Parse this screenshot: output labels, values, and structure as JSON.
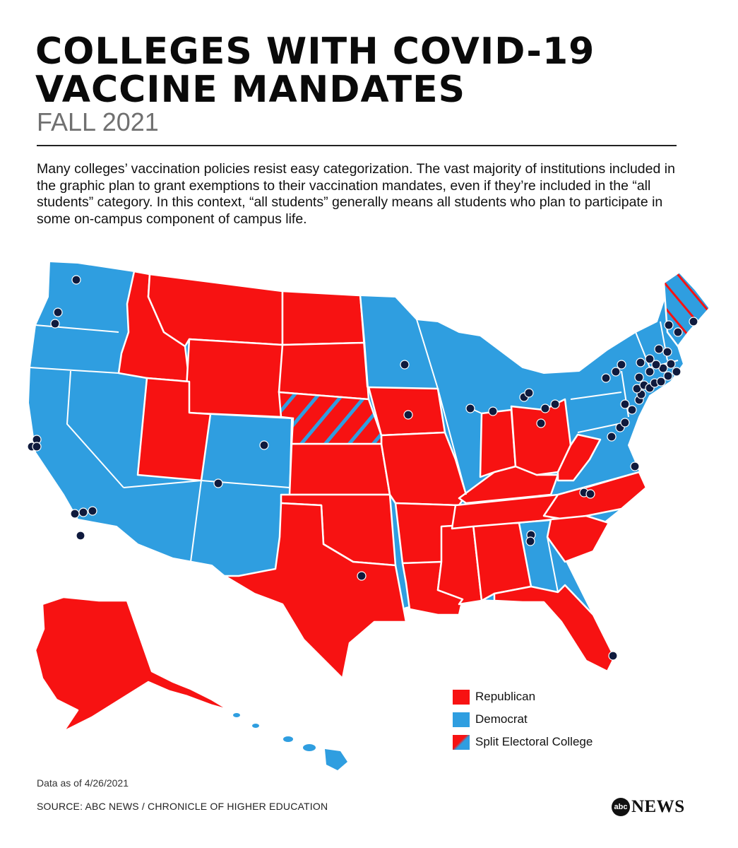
{
  "header": {
    "title_line1": "COLLEGES WITH COVID-19",
    "title_line2": "VACCINE MANDATES",
    "subtitle": "FALL 2021",
    "intro": "Many colleges’ vaccination policies resist easy categorization. The vast majority of institutions included in the graphic plan to grant exemptions to their vaccination mandates, even if they’re included in the “all students” category. In this context, “all students” generally means all students who plan to participate in some on-campus component of campus life."
  },
  "map": {
    "colors": {
      "republican": "#f71212",
      "democrat": "#2f9ee0",
      "marker": "#0f1a3d",
      "border": "#ffffff"
    },
    "republican_states": [
      "Idaho",
      "Montana",
      "Wyoming",
      "Utah",
      "North Dakota",
      "South Dakota",
      "Kansas",
      "Oklahoma",
      "Texas",
      "Missouri",
      "Iowa",
      "Arkansas",
      "Louisiana",
      "Mississippi",
      "Alabama",
      "Tennessee",
      "Kentucky",
      "Indiana",
      "Ohio",
      "West Virginia",
      "North Carolina",
      "South Carolina",
      "Florida",
      "Alaska"
    ],
    "democrat_states": [
      "Washington",
      "Oregon",
      "California",
      "Nevada",
      "Arizona",
      "Colorado",
      "New Mexico",
      "Minnesota",
      "Wisconsin",
      "Illinois",
      "Michigan",
      "Georgia",
      "Virginia",
      "Pennsylvania",
      "New York",
      "New Jersey",
      "Delaware",
      "Maryland",
      "Connecticut",
      "Rhode Island",
      "Massachusetts",
      "Vermont",
      "New Hampshire",
      "Hawaii"
    ],
    "split_states": [
      "Nebraska",
      "Maine"
    ],
    "colleges_marked": 68
  },
  "legend": {
    "items": [
      {
        "label": "Republican",
        "color": "#f71212"
      },
      {
        "label": "Democrat",
        "color": "#2f9ee0"
      },
      {
        "label": "Split Electoral College",
        "color": "split"
      }
    ]
  },
  "footer": {
    "data_as_of": "Data as of 4/26/2021",
    "source": "SOURCE: ABC NEWS / CHRONICLE OF HIGHER EDUCATION",
    "logo_abc": "abc",
    "logo_news": "NEWS"
  }
}
